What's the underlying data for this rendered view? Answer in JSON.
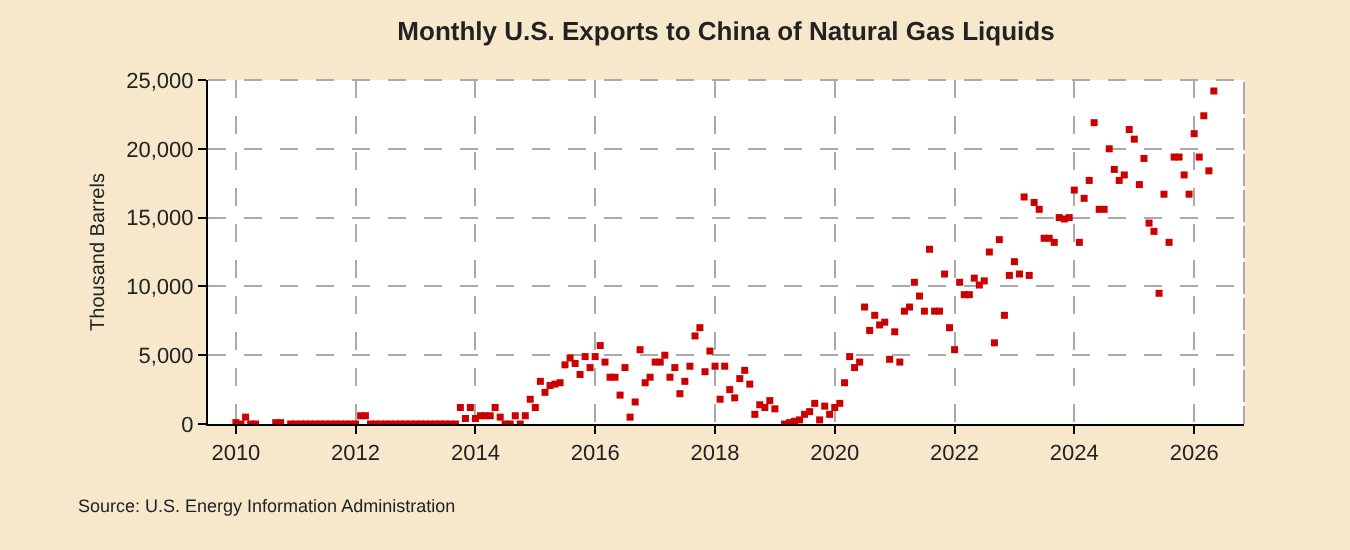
{
  "chart_data": {
    "type": "scatter",
    "title": "Monthly U.S. Exports to China of Natural Gas Liquids",
    "ylabel": "Thousand Barrels",
    "annotations": [
      "Source: U.S. Energy Information Administration"
    ],
    "marker": "square",
    "grid": true,
    "legend": false,
    "xlim": [
      "2009-07-15",
      "2026-11-01"
    ],
    "xticks": [
      {
        "value": "2010-01-01",
        "label": "2010"
      },
      {
        "value": "2012-01-01",
        "label": "2012"
      },
      {
        "value": "2014-01-01",
        "label": "2014"
      },
      {
        "value": "2016-01-01",
        "label": "2016"
      },
      {
        "value": "2018-01-01",
        "label": "2018"
      },
      {
        "value": "2020-01-01",
        "label": "2020"
      },
      {
        "value": "2022-01-01",
        "label": "2022"
      },
      {
        "value": "2024-01-01",
        "label": "2024"
      },
      {
        "value": "2026-01-01",
        "label": "2026"
      }
    ],
    "ylim": [
      0,
      25000
    ],
    "yticks": [
      0,
      {
        "value": 5000,
        "label": "5,000"
      },
      {
        "value": 10000,
        "label": "10,000"
      },
      {
        "value": 15000,
        "label": "15,000"
      },
      {
        "value": 20000,
        "label": "20,000"
      },
      {
        "value": 25000,
        "label": "25,000"
      }
    ],
    "x": [
      "2010-01",
      "2010-02",
      "2010-03",
      "2010-04",
      "2010-05",
      "2010-09",
      "2010-10",
      "2010-12",
      "2011-01",
      "2011-02",
      "2011-03",
      "2011-04",
      "2011-05",
      "2011-06",
      "2011-07",
      "2011-08",
      "2011-09",
      "2011-10",
      "2011-11",
      "2011-12",
      "2012-01",
      "2012-02",
      "2012-03",
      "2012-04",
      "2012-05",
      "2012-06",
      "2012-07",
      "2012-08",
      "2012-09",
      "2012-10",
      "2012-11",
      "2012-12",
      "2013-01",
      "2013-02",
      "2013-03",
      "2013-04",
      "2013-05",
      "2013-06",
      "2013-07",
      "2013-08",
      "2013-09",
      "2013-10",
      "2013-11",
      "2013-12",
      "2014-01",
      "2014-02",
      "2014-03",
      "2014-04",
      "2014-05",
      "2014-06",
      "2014-07",
      "2014-08",
      "2014-09",
      "2014-10",
      "2014-11",
      "2014-12",
      "2015-01",
      "2015-02",
      "2015-03",
      "2015-04",
      "2015-05",
      "2015-06",
      "2015-07",
      "2015-08",
      "2015-09",
      "2015-10",
      "2015-11",
      "2015-12",
      "2016-01",
      "2016-02",
      "2016-03",
      "2016-04",
      "2016-05",
      "2016-06",
      "2016-07",
      "2016-08",
      "2016-09",
      "2016-10",
      "2016-11",
      "2016-12",
      "2017-01",
      "2017-02",
      "2017-03",
      "2017-04",
      "2017-05",
      "2017-06",
      "2017-07",
      "2017-08",
      "2017-09",
      "2017-10",
      "2017-11",
      "2017-12",
      "2018-01",
      "2018-02",
      "2018-03",
      "2018-04",
      "2018-05",
      "2018-06",
      "2018-07",
      "2018-08",
      "2018-09",
      "2018-10",
      "2018-11",
      "2018-12",
      "2019-01",
      "2019-03",
      "2019-04",
      "2019-05",
      "2019-06",
      "2019-07",
      "2019-08",
      "2019-09",
      "2019-10",
      "2019-11",
      "2019-12",
      "2020-01",
      "2020-02",
      "2020-03",
      "2020-04",
      "2020-05",
      "2020-06",
      "2020-07",
      "2020-08",
      "2020-09",
      "2020-10",
      "2020-11",
      "2020-12",
      "2021-01",
      "2021-02",
      "2021-03",
      "2021-04",
      "2021-05",
      "2021-06",
      "2021-07",
      "2021-08",
      "2021-09",
      "2021-10",
      "2021-11",
      "2021-12",
      "2022-01",
      "2022-02",
      "2022-03",
      "2022-04",
      "2022-05",
      "2022-06",
      "2022-07",
      "2022-08",
      "2022-09",
      "2022-10",
      "2022-11",
      "2022-12",
      "2023-01",
      "2023-02",
      "2023-03",
      "2023-04",
      "2023-05",
      "2023-06",
      "2023-07",
      "2023-08",
      "2023-09",
      "2023-10",
      "2023-11",
      "2023-12",
      "2024-01",
      "2024-02",
      "2024-03",
      "2024-04",
      "2024-05",
      "2024-06",
      "2024-07",
      "2024-08",
      "2024-09",
      "2024-10",
      "2024-11",
      "2024-12",
      "2025-01",
      "2025-02",
      "2025-03",
      "2025-04",
      "2025-05",
      "2025-06",
      "2025-07",
      "2025-08",
      "2025-09",
      "2025-10",
      "2025-11",
      "2025-12",
      "2026-01",
      "2026-02",
      "2026-03",
      "2026-04",
      "2026-05"
    ],
    "series": [
      {
        "color": "#cc0000",
        "values": [
          100,
          0,
          500,
          0,
          0,
          100,
          100,
          0,
          0,
          0,
          0,
          0,
          0,
          0,
          0,
          0,
          0,
          0,
          0,
          0,
          0,
          600,
          600,
          0,
          0,
          0,
          0,
          0,
          0,
          0,
          0,
          0,
          0,
          0,
          0,
          0,
          0,
          0,
          0,
          0,
          0,
          1200,
          400,
          1200,
          400,
          600,
          600,
          600,
          1200,
          500,
          0,
          0,
          600,
          0,
          600,
          1800,
          1200,
          3100,
          2300,
          2800,
          2900,
          3000,
          4300,
          4800,
          4400,
          3600,
          4900,
          4100,
          4900,
          5700,
          4500,
          3400,
          3400,
          2100,
          4100,
          500,
          1600,
          5400,
          3000,
          3400,
          4500,
          4500,
          5000,
          3400,
          4100,
          2200,
          3100,
          4200,
          6400,
          7000,
          3800,
          5300,
          4200,
          1800,
          4200,
          2500,
          1900,
          3300,
          3900,
          2900,
          700,
          1400,
          1200,
          1700,
          1100,
          0,
          100,
          200,
          300,
          700,
          900,
          1500,
          300,
          1300,
          700,
          1200,
          1500,
          3000,
          4900,
          4100,
          4500,
          8500,
          6800,
          7900,
          7200,
          7400,
          4700,
          6700,
          4500,
          8200,
          8500,
          10300,
          9300,
          8200,
          12700,
          8200,
          8200,
          10900,
          7000,
          5400,
          10300,
          9400,
          9400,
          10600,
          10100,
          10400,
          12500,
          5900,
          13400,
          7900,
          10800,
          11800,
          10900,
          16500,
          10800,
          16100,
          15600,
          13500,
          13500,
          13200,
          15000,
          14900,
          15000,
          17000,
          13200,
          16400,
          17700,
          21900,
          15600,
          15600,
          20000,
          18500,
          17700,
          18100,
          21400,
          20700,
          17400,
          19300,
          14600,
          14000,
          9500,
          16700,
          13200,
          19400,
          19400,
          18100,
          16700,
          21100,
          19400,
          22400,
          18400,
          24200
        ]
      }
    ]
  }
}
